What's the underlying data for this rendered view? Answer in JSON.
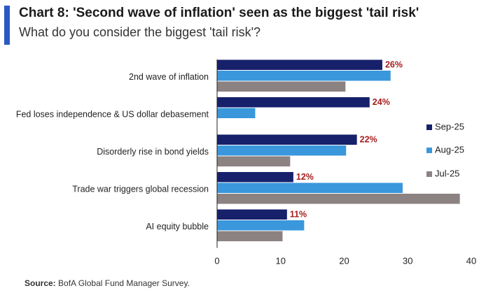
{
  "header": {
    "title": "Chart 8: 'Second wave of inflation' seen as the biggest 'tail risk'",
    "subtitle": "What do you consider the biggest 'tail risk'?"
  },
  "footer": {
    "source_label": "Source:",
    "source_text": "BofA Global Fund Manager Survey."
  },
  "colors": {
    "sep25": "#17206b",
    "aug25": "#3a97dc",
    "jul25": "#8c8282",
    "label_red": "#a61c1c",
    "accent": "#2b59c3"
  },
  "chart_data": {
    "type": "bar",
    "orientation": "horizontal",
    "categories": [
      "2nd wave of inflation",
      "Fed loses independence & US dollar debasement",
      "Disorderly rise in bond yields",
      "Trade war triggers global recession",
      "AI equity bubble"
    ],
    "series": [
      {
        "name": "Sep-25",
        "values": [
          26,
          24,
          22,
          12,
          11
        ]
      },
      {
        "name": "Aug-25",
        "values": [
          27.3,
          6,
          20.3,
          29.2,
          13.7
        ]
      },
      {
        "name": "Jul-25",
        "values": [
          20.2,
          null,
          11.5,
          38.2,
          10.3
        ]
      }
    ],
    "data_labels": [
      "26%",
      "24%",
      "22%",
      "12%",
      "11%"
    ],
    "xlim": [
      0,
      40
    ],
    "xticks": [
      0,
      10,
      20,
      30,
      40
    ],
    "xlabel": "",
    "ylabel": "",
    "legend": "right",
    "grid": false
  }
}
